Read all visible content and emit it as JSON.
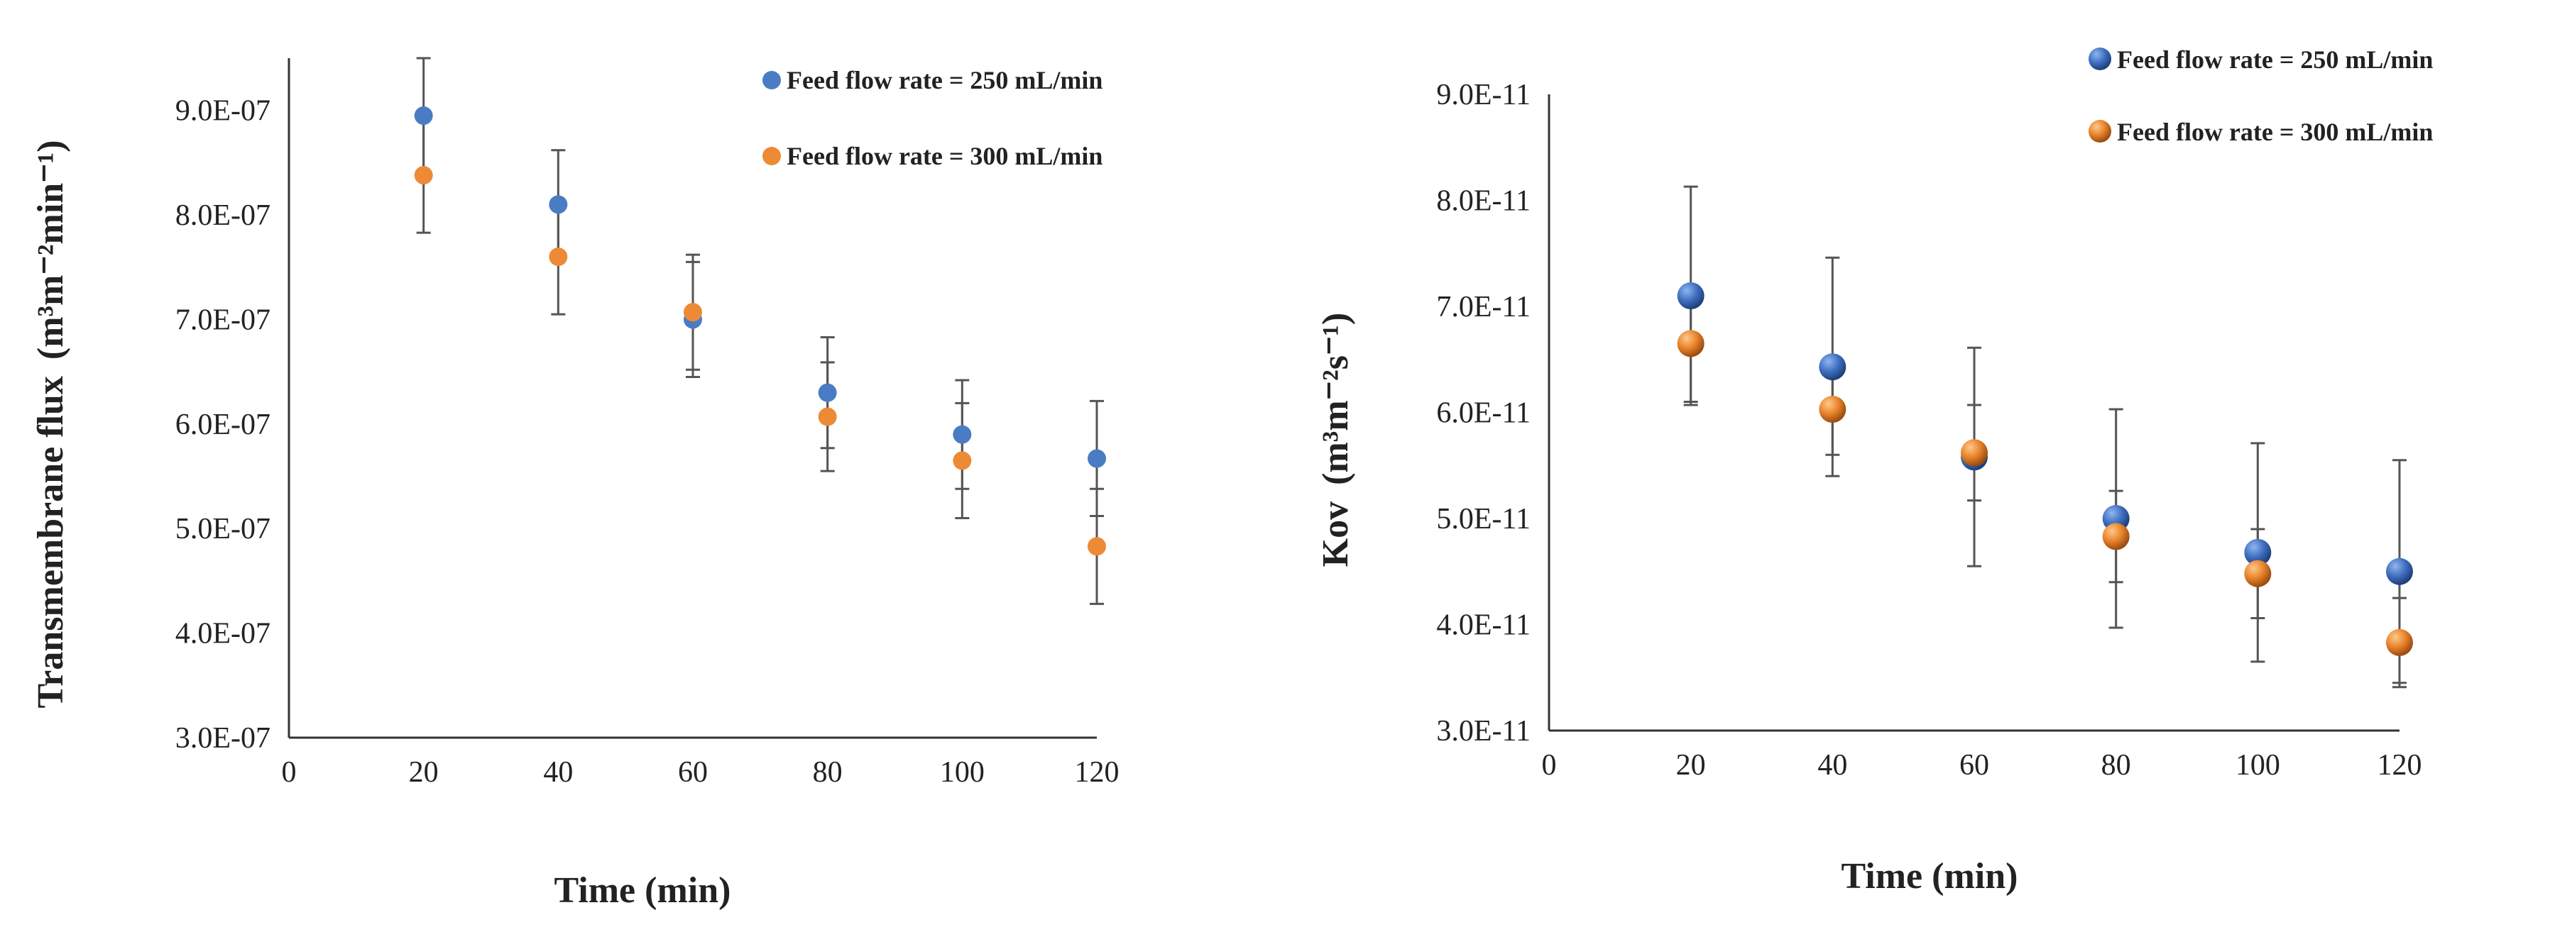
{
  "colors": {
    "series_250": "#4a7cc4",
    "series_300": "#ed8a35",
    "error_bar": "#555555",
    "axis": "#333333"
  },
  "chart_data": [
    {
      "type": "scatter",
      "title": "",
      "xlabel": "Time (min)",
      "ylabel": "Transmembrane flux",
      "ylabel_unit": "(m³m⁻²min⁻¹)",
      "x": [
        20,
        40,
        60,
        80,
        100,
        120
      ],
      "xlim": [
        0,
        120
      ],
      "xticks": [
        "0",
        "20",
        "40",
        "60",
        "80",
        "100",
        "120"
      ],
      "ylim": [
        3e-07,
        9.5e-07
      ],
      "yticks": [
        "3.0E-07",
        "4.0E-07",
        "5.0E-07",
        "6.0E-07",
        "7.0E-07",
        "8.0E-07",
        "9.0E-07"
      ],
      "ytick_values": [
        3e-07,
        4e-07,
        5e-07,
        6e-07,
        7e-07,
        8e-07,
        9e-07
      ],
      "grid": false,
      "legend_position": "top-right",
      "series": [
        {
          "name": "Feed flow rate = 250 mL/min",
          "values": [
            8.95e-07,
            8.1e-07,
            7e-07,
            6.3e-07,
            5.9e-07,
            5.67e-07
          ],
          "error": [
            5.5e-08,
            5.2e-08,
            5.5e-08,
            5.3e-08,
            5.2e-08,
            5.5e-08
          ]
        },
        {
          "name": "Feed flow rate = 300 mL/min",
          "values": [
            8.38e-07,
            7.6e-07,
            7.07e-07,
            6.07e-07,
            5.65e-07,
            4.83e-07
          ],
          "error": [
            5.5e-08,
            5.5e-08,
            5.5e-08,
            5.2e-08,
            5.5e-08,
            5.5e-08
          ]
        }
      ]
    },
    {
      "type": "scatter",
      "title": "",
      "xlabel": "Time (min)",
      "ylabel": "Kov",
      "ylabel_unit": "(m³m⁻²s⁻¹)",
      "x": [
        20,
        40,
        60,
        80,
        100,
        120
      ],
      "xlim": [
        0,
        120
      ],
      "xticks": [
        "0",
        "20",
        "40",
        "60",
        "80",
        "100",
        "120"
      ],
      "ylim": [
        3e-11,
        9e-11
      ],
      "yticks": [
        "3.0E-11",
        "4.0E-11",
        "5.0E-11",
        "6.0E-11",
        "7.0E-11",
        "8.0E-11",
        "9.0E-11"
      ],
      "ytick_values": [
        3e-11,
        4e-11,
        5e-11,
        6e-11,
        7e-11,
        8e-11,
        9e-11
      ],
      "grid": false,
      "legend_position": "top-right",
      "series": [
        {
          "name": "Feed flow rate = 250 mL/min",
          "values": [
            7.1e-11,
            6.43e-11,
            5.58e-11,
            5e-11,
            4.68e-11,
            4.5e-11
          ],
          "error": [
            1.03e-11,
            1.03e-11,
            1.03e-11,
            1.03e-11,
            1.03e-11,
            1.05e-11
          ]
        },
        {
          "name": "Feed flow rate = 300 mL/min",
          "values": [
            6.65e-11,
            6.03e-11,
            5.62e-11,
            4.83e-11,
            4.48e-11,
            3.83e-11
          ],
          "error": [
            5.5e-12,
            4.3e-12,
            4.5e-12,
            4.3e-12,
            4.2e-12,
            4.2e-12
          ]
        }
      ]
    }
  ]
}
